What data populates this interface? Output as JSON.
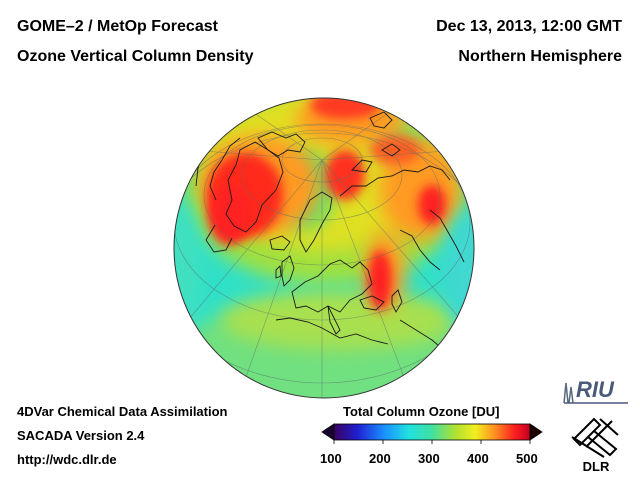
{
  "header": {
    "product": "GOME–2 / MetOp Forecast",
    "quantity": "Ozone Vertical Column Density",
    "datetime": "Dec 13, 2013, 12:00 GMT",
    "region": "Northern Hemisphere"
  },
  "footer": {
    "method": "4DVar Chemical Data Assimilation",
    "version": "SACADA Version 2.4",
    "url": "http://wdc.dlr.de"
  },
  "colorbar": {
    "title": "Total Column Ozone [DU]",
    "min": 100,
    "max": 500,
    "ticks": [
      "100",
      "200",
      "300",
      "400",
      "500"
    ],
    "colors": [
      "#3a0060",
      "#2020d0",
      "#1a8cff",
      "#20e0e0",
      "#40e0a0",
      "#90e040",
      "#f0f020",
      "#ff9020",
      "#ff2020",
      "#c00020"
    ]
  },
  "logos": {
    "riu": "RIU",
    "dlr": "DLR"
  }
}
